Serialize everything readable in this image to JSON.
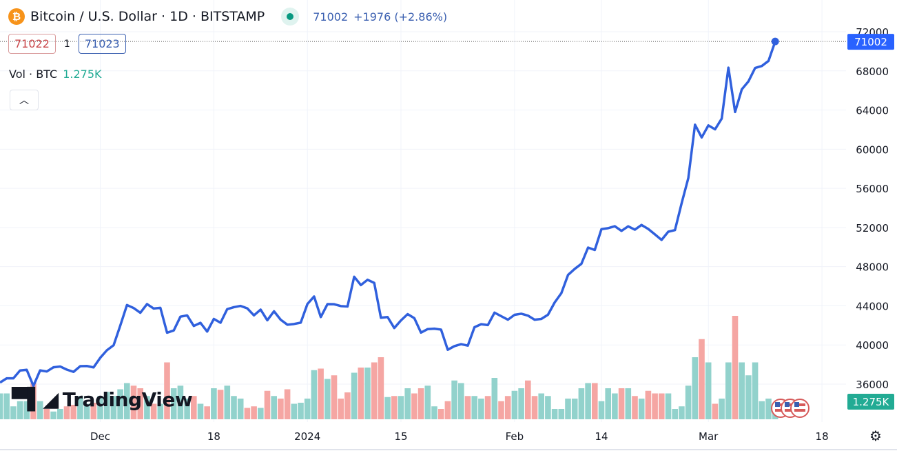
{
  "header": {
    "symbol": "Bitcoin / U.S. Dollar · 1D · BITSTAMP",
    "coin_icon": "bitcoin-icon",
    "market_status": "open",
    "last": "71002",
    "change": "+1976 (+2.86%)",
    "bid": "71022",
    "spread": "1",
    "ask": "71023"
  },
  "volume_legend": {
    "label": "Vol · BTC",
    "value": "1.275K"
  },
  "collapse_icon": "chevron-up-icon",
  "logo": "TradingView",
  "settings_icon": "gear-icon",
  "colors": {
    "line": "#3060dd",
    "up_volume": "#92d2cc",
    "down_volume": "#f5a6a3",
    "price_label": "#2962ff",
    "volume_label": "#22ab94"
  },
  "chart_data": {
    "type": "line",
    "x_start": "2023-11-16",
    "x_end": "2024-03-11",
    "x_tick_labels": [
      {
        "date": "2023-12-01",
        "label": "Dec"
      },
      {
        "date": "2023-12-18",
        "label": "18"
      },
      {
        "date": "2024-01-01",
        "label": "2024"
      },
      {
        "date": "2024-01-15",
        "label": "15"
      },
      {
        "date": "2024-02-01",
        "label": "Feb"
      },
      {
        "date": "2024-02-14",
        "label": "14"
      },
      {
        "date": "2024-03-01",
        "label": "Mar"
      },
      {
        "date": "2024-03-18",
        "label": "18"
      }
    ],
    "y_ticks": [
      72000,
      68000,
      64000,
      60000,
      56000,
      52000,
      48000,
      44000,
      40000,
      36000
    ],
    "ylim": [
      35400,
      72600
    ],
    "grid": true,
    "last_price_label": "71002",
    "last_volume_label": "1.275K",
    "series": [
      {
        "type": "line",
        "values": [
          36160,
          36590,
          36590,
          37390,
          37460,
          35820,
          37400,
          37290,
          37720,
          37800,
          37480,
          37250,
          37830,
          37850,
          37710,
          38690,
          39460,
          39970,
          41980,
          44080,
          43770,
          43290,
          44180,
          43720,
          43790,
          41250,
          41480,
          42890,
          43020,
          41940,
          42260,
          41370,
          42660,
          42270,
          43660,
          43860,
          43990,
          43740,
          43020,
          43610,
          42520,
          43440,
          42580,
          42070,
          42140,
          42280,
          44180,
          44950,
          42850,
          44170,
          44160,
          43970,
          43930,
          46970,
          46120,
          46660,
          46340,
          42780,
          42850,
          41730,
          42510,
          43150,
          42740,
          41260,
          41620,
          41660,
          41570,
          39510,
          39880,
          40080,
          39930,
          41810,
          42120,
          42030,
          43300,
          42940,
          42580,
          43080,
          43190,
          43000,
          42580,
          42660,
          43090,
          44340,
          45290,
          47150,
          47770,
          48290,
          49950,
          49700,
          51830,
          51930,
          52130,
          51650,
          52120,
          51780,
          52260,
          51850,
          51300,
          50730,
          51570,
          51730,
          54480,
          57050,
          62500,
          61200,
          62430,
          62030,
          63130,
          68330,
          63800,
          66110,
          66930,
          68300,
          68500,
          69020,
          71002
        ]
      },
      {
        "type": "bar",
        "unit": "K BTC",
        "values": [
          5,
          5,
          2.5,
          3.5,
          3.5,
          7,
          3.5,
          2,
          1.5,
          2,
          2.5,
          2.8,
          4.5,
          3,
          3.2,
          4.5,
          5.3,
          4.5,
          5.8,
          7,
          6.5,
          6,
          4.5,
          3,
          3,
          11,
          6,
          6.5,
          4,
          4.5,
          3,
          2.5,
          6,
          5.7,
          6.5,
          4.5,
          4,
          2.2,
          2.5,
          2.2,
          5.5,
          4.5,
          4,
          5.8,
          3,
          3.2,
          4,
          9.5,
          9.8,
          7.8,
          8.5,
          4,
          5.2,
          9,
          10,
          10,
          11,
          12,
          4.3,
          4.5,
          4.5,
          6,
          5,
          6,
          6.5,
          2.5,
          2,
          3.5,
          7.5,
          7,
          4.5,
          4.5,
          4,
          4.5,
          8,
          3.5,
          4.5,
          5.5,
          6,
          7.5,
          4.5,
          5,
          4.5,
          2,
          2,
          4,
          4,
          6,
          7,
          7,
          3.5,
          6,
          5,
          6,
          6,
          4.5,
          4,
          5.5,
          5,
          5,
          5,
          2,
          2.5,
          6.5,
          12,
          15.5,
          11,
          3,
          4,
          11,
          20,
          11,
          8.5,
          11,
          3.5,
          4,
          1.275
        ]
      }
    ]
  }
}
